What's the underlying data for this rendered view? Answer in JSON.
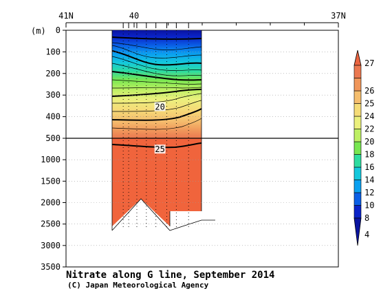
{
  "chart_data": {
    "type": "heatmap",
    "title": "Nitrate along G line, September 2014",
    "credit": "(C) Japan Meteorological Agency",
    "xlabel": "",
    "ylabel": "(m)",
    "x_ticks": [
      {
        "value": 41,
        "label": "41N"
      },
      {
        "value": 40,
        "label": "40"
      },
      {
        "value": 37,
        "label": "37N"
      }
    ],
    "x_minor_ticks": [
      39.5,
      39,
      38.5,
      38,
      37.5
    ],
    "xlim": [
      41,
      37
    ],
    "y_upper": {
      "range": [
        0,
        500
      ],
      "ticks": [
        0,
        100,
        200,
        300,
        400,
        500
      ]
    },
    "y_lower": {
      "range": [
        500,
        3500
      ],
      "ticks": [
        1000,
        1500,
        2000,
        2500,
        3000,
        3500
      ]
    },
    "stations_lat": [
      40.16,
      40.08,
      39.96,
      39.82,
      39.68,
      39.52,
      39.38,
      39.2
    ],
    "section_lat": [
      40.16,
      39.14
    ],
    "contour_labels": [
      {
        "text": "20",
        "lat": 39.62,
        "depth": 355
      },
      {
        "text": "25",
        "lat": 39.62,
        "depth": 760
      }
    ],
    "colorbar": {
      "levels": [
        4,
        8,
        10,
        12,
        14,
        16,
        18,
        20,
        22,
        24,
        25,
        26,
        27
      ],
      "colors": [
        "#0a23c8",
        "#0a5fe6",
        "#0aa0f0",
        "#14c8dc",
        "#2ddca0",
        "#78e650",
        "#bef064",
        "#ebf07d",
        "#f5dc78",
        "#f5be6e",
        "#f0965a",
        "#eb7850"
      ],
      "over_color": "#eb6440",
      "under_color": "#0a14a0",
      "tick_labels": [
        "4",
        "8",
        "10",
        "12",
        "14",
        "16",
        "18",
        "20",
        "22",
        "24",
        "25",
        "26",
        "27"
      ]
    },
    "deep_fill_color": "#f0643c"
  }
}
